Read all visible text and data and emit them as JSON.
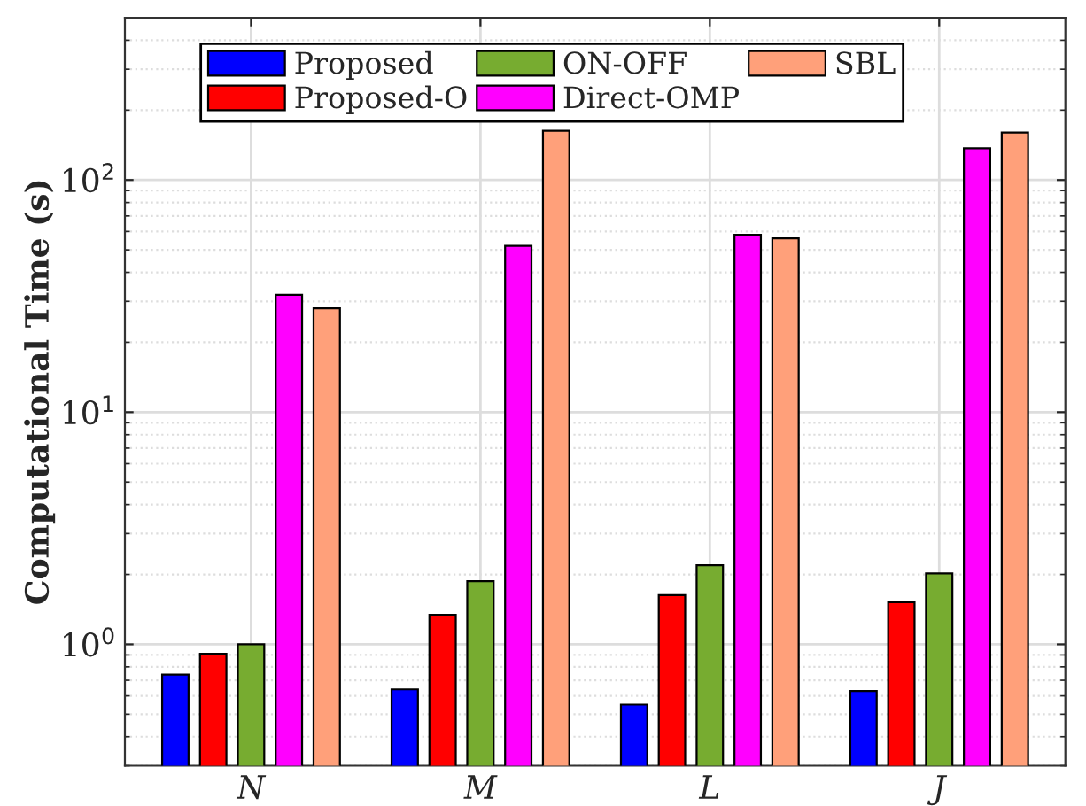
{
  "chart_data": {
    "type": "bar",
    "ylabel": "Computational Time (s)",
    "categories": [
      "N",
      "M",
      "L",
      "J"
    ],
    "series": [
      {
        "name": "Proposed",
        "color": "#0000ff",
        "values": [
          0.74,
          0.64,
          0.55,
          0.63
        ]
      },
      {
        "name": "Proposed-O",
        "color": "#ff0000",
        "values": [
          0.91,
          1.34,
          1.63,
          1.52
        ]
      },
      {
        "name": "ON-OFF",
        "color": "#77ac30",
        "values": [
          1.0,
          1.87,
          2.19,
          2.02
        ]
      },
      {
        "name": "Direct-OMP",
        "color": "#ff00ff",
        "values": [
          32,
          52,
          58,
          137
        ]
      },
      {
        "name": "SBL",
        "color": "#ffa07a",
        "values": [
          28,
          163,
          56,
          160
        ]
      }
    ],
    "log": "y",
    "ylim": [
      0.3,
      500
    ],
    "yticks": [
      {
        "value": 1,
        "label": "10$^{0}$"
      },
      {
        "value": 10,
        "label": "10$^{1}$"
      },
      {
        "value": 100,
        "label": "10$^{2}$"
      }
    ],
    "grid": true,
    "legend": "top"
  }
}
